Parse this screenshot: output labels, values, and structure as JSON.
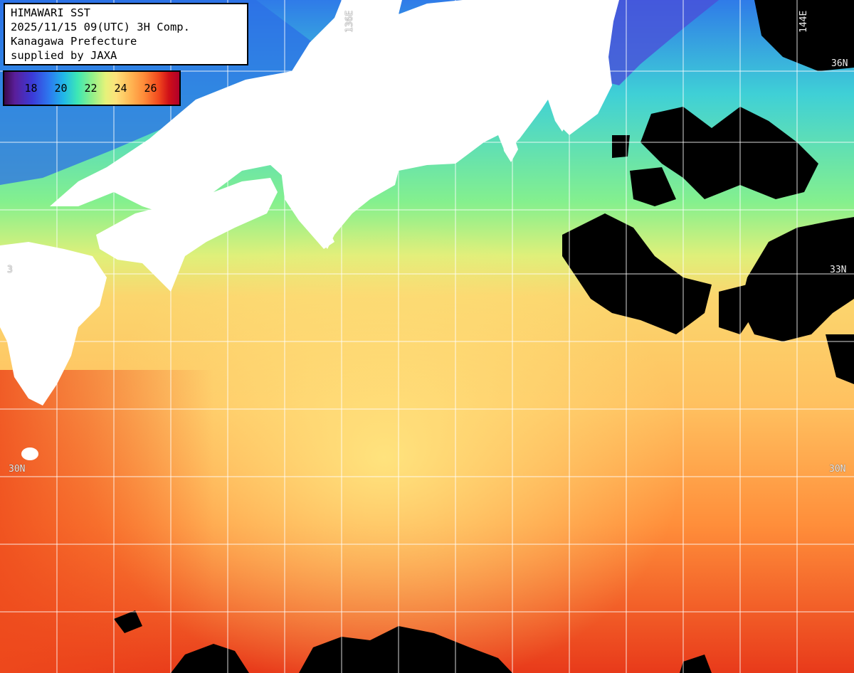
{
  "info": {
    "title": "HIMAWARI SST",
    "datetime": "2025/11/15 09(UTC) 3H Comp.",
    "org": "Kanagawa Prefecture",
    "supplier": "supplied by JAXA"
  },
  "legend": {
    "ticks": [
      "18",
      "20",
      "22",
      "24",
      "26"
    ],
    "colors": [
      "#3a0a4a",
      "#3b3ad8",
      "#21b8e8",
      "#8ff08a",
      "#fde17a",
      "#ff8a38",
      "#d01018"
    ]
  },
  "grid_labels": {
    "lon_136": "136E",
    "lon_144": "144E",
    "lat_36": "36N",
    "lat_33_right": "33N",
    "lat_33_left": "3",
    "lat_30_left": "30N",
    "lat_30_right": "30N"
  },
  "map_colors": {
    "land": "#ffffff",
    "cloud": "#000000",
    "grid": "#ffffff"
  }
}
